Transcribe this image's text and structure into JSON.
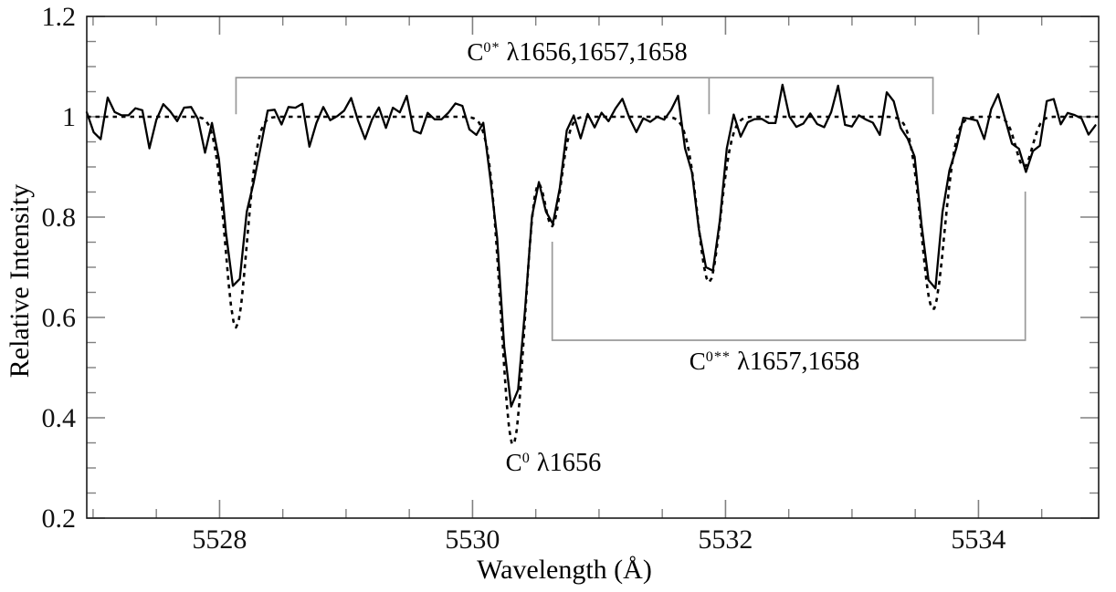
{
  "chart_data": {
    "type": "line",
    "title": "",
    "xlabel": "Wavelength (Å)",
    "ylabel": "Relative Intensity",
    "xlim": [
      5526.95,
      5534.95
    ],
    "ylim": [
      0.2,
      1.2
    ],
    "grid": false,
    "legend": "none",
    "x_ticks": [
      [
        5528,
        "5528"
      ],
      [
        5530,
        "5530"
      ],
      [
        5532,
        "5532"
      ],
      [
        5534,
        "5534"
      ]
    ],
    "x_minor_step": 0.5,
    "y_ticks": [
      [
        0.2,
        "0.2"
      ],
      [
        0.4,
        "0.4"
      ],
      [
        0.6,
        "0.6"
      ],
      [
        0.8,
        "0.8"
      ],
      [
        1.0,
        "1"
      ],
      [
        1.2,
        "1.2"
      ]
    ],
    "y_minor_step": 0.05,
    "continuum_level": 1.0,
    "absorption_lines": [
      {
        "id": "C0*_1656",
        "center": 5528.13,
        "sigma": 0.085
      },
      {
        "id": "C0_1656",
        "center": 5530.32,
        "sigma": 0.095
      },
      {
        "id": "C0**_1657",
        "center": 5530.63,
        "sigma": 0.07
      },
      {
        "id": "C0*_1657",
        "center": 5531.87,
        "sigma": 0.09
      },
      {
        "id": "C0*_1658",
        "center": 5533.64,
        "sigma": 0.09
      },
      {
        "id": "C0**_1658",
        "center": 5534.36,
        "sigma": 0.065
      }
    ],
    "series": [
      {
        "name": "observed-spectrum",
        "style": "solid",
        "color": "#000000",
        "width": 2.3,
        "sample_step": 0.055,
        "line_depths": [
          0.355,
          0.6,
          0.215,
          0.315,
          0.335,
          0.1
        ],
        "line_minima": [
          0.64,
          0.4,
          0.78,
          0.68,
          0.66,
          0.9
        ],
        "noise": {
          "amplitudes": [
            0.018,
            0.022,
            0.013,
            0.01,
            0.008
          ],
          "freqs": [
            2.3,
            4.7,
            7.1,
            9.7,
            13.3
          ],
          "phases": [
            3.8,
            2.6,
            0.9,
            5.0,
            1.7
          ],
          "scale_by_flux": true
        }
      },
      {
        "name": "model-fit",
        "style": "dashed",
        "color": "#000000",
        "width": 2.6,
        "dash": "4.5 5",
        "sample_step": 0.02,
        "line_depths": [
          0.42,
          0.655,
          0.215,
          0.33,
          0.385,
          0.1
        ],
        "line_minima": [
          0.58,
          0.34,
          0.78,
          0.67,
          0.61,
          0.9
        ]
      }
    ],
    "brackets": [
      {
        "name": "c0-star-bracket",
        "type": "top",
        "y": 1.078,
        "tick_to": 1.005,
        "x_ticks": [
          5528.13,
          5531.87,
          5533.64
        ],
        "color": "#999999"
      },
      {
        "name": "c0-doublestar-bracket",
        "type": "bottom",
        "y": 0.5545,
        "ends": [
          {
            "x": 5530.63,
            "to": 0.751
          },
          {
            "x": 5534.37,
            "to": 0.851
          }
        ],
        "color": "#999999"
      }
    ],
    "annotations": {
      "upper": {
        "base": "C",
        "sup": "0*",
        "rest": " λ1656,1657,1658"
      },
      "lower": {
        "base": "C",
        "sup": "0**",
        "rest": " λ1657,1658"
      },
      "deep": {
        "base": "C",
        "sup": "0",
        "rest": " λ1656"
      }
    },
    "colors": {
      "data_line": "#000000",
      "fit_line": "#000000",
      "bracket": "#999999",
      "ticks": "#808080",
      "frame": "#1a1a1a",
      "background": "#ffffff"
    }
  }
}
